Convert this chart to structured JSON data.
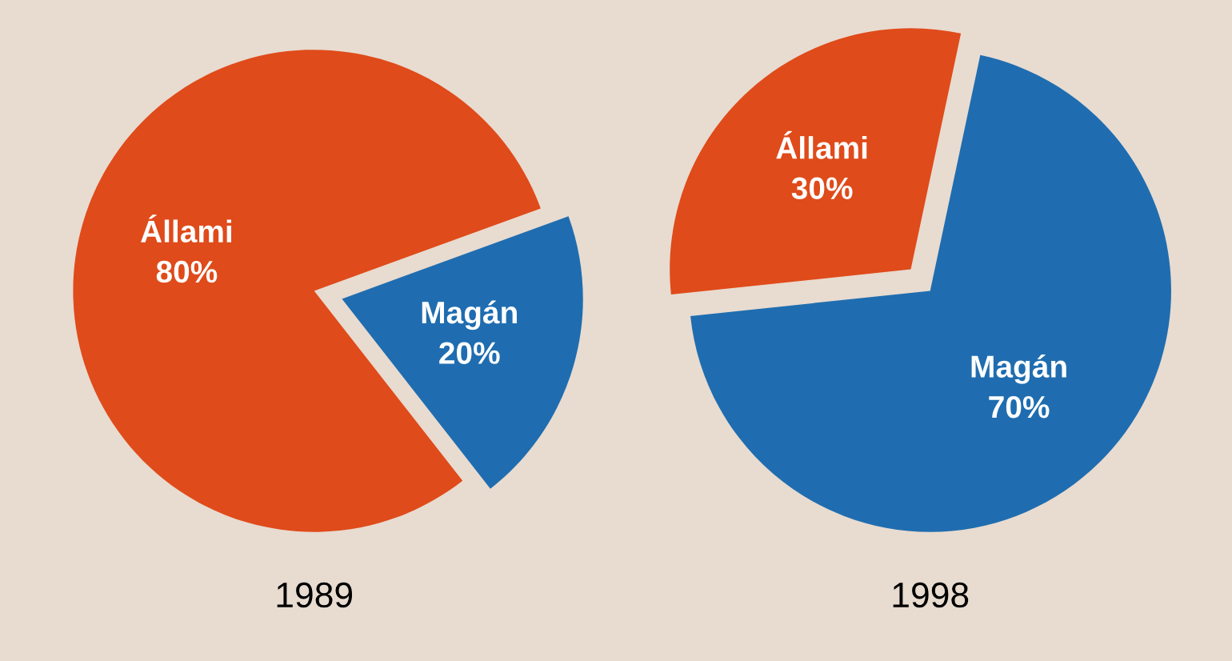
{
  "chart_data": [
    {
      "type": "pie",
      "xlabel": "1989",
      "categories": [
        "Állami",
        "Magán"
      ],
      "values": [
        80,
        20
      ],
      "colors": [
        "#df4b1a",
        "#1f6db0"
      ],
      "value_labels": [
        "80%",
        "20%"
      ]
    },
    {
      "type": "pie",
      "xlabel": "1998",
      "categories": [
        "Állami",
        "Magán"
      ],
      "values": [
        30,
        70
      ],
      "colors": [
        "#df4b1a",
        "#1f6db0"
      ],
      "value_labels": [
        "30%",
        "70%"
      ]
    }
  ]
}
